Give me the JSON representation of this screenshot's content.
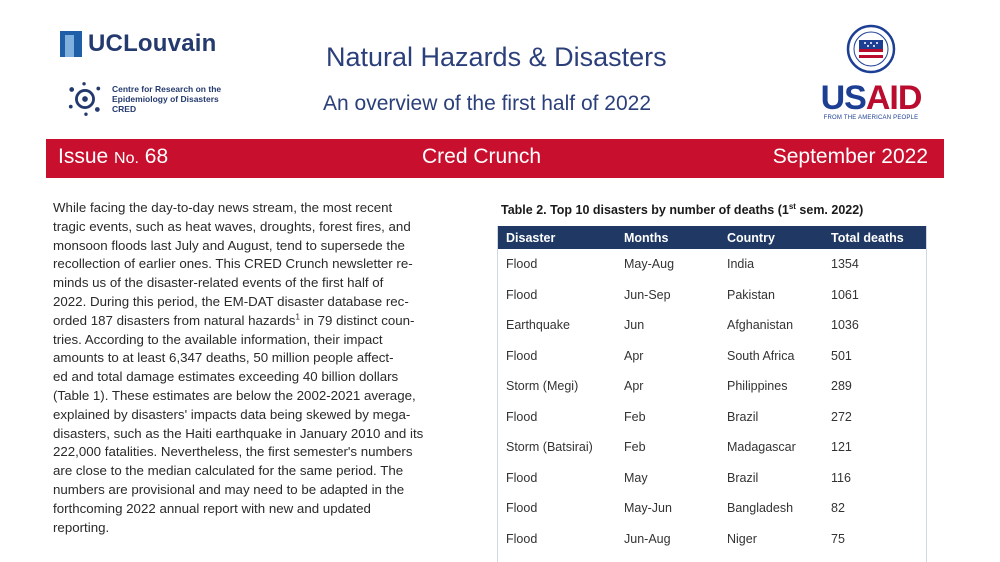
{
  "header": {
    "ucl_logo_text": "UCLouvain",
    "cred_logo_lines": [
      "Centre for Research on the",
      "Epidemiology of Disasters",
      "CRED"
    ],
    "title": "Natural Hazards & Disasters",
    "subtitle": "An overview of the first half of 2022",
    "usaid_logo_text": "USAID",
    "usaid_tagline": "FROM THE AMERICAN PEOPLE"
  },
  "banner": {
    "issue_label": "Issue",
    "issue_no": "No.",
    "issue_number": "68",
    "newsletter_name": "Cred Crunch",
    "date": "September 2022",
    "color": "#c8102e"
  },
  "body_lines": [
    "While facing the day-to-day news stream, the most recent",
    "tragic events, such as heat waves, droughts, forest fires, and",
    "monsoon floods last July and August, tend to supersede the",
    "recollection of earlier ones. This CRED Crunch newsletter re-",
    "minds us of the disaster-related events of the first half of",
    "2022. During this period, the EM-DAT disaster database rec-",
    "orded 187 disasters from natural hazards",
    "tries. According to the available information, their impact",
    "amounts to at least 6,347 deaths, 50 million people affect-",
    "ed  and total damage estimates exceeding 40 billion dollars",
    "(Table 1). These estimates are below the 2002-2021 average,",
    "explained by disasters' impacts data being skewed by mega-",
    "disasters, such as the Haiti earthquake in January 2010 and its",
    "222,000 fatalities. Nevertheless, the first semester's numbers",
    "are close to the median calculated for the same period. The",
    "numbers are provisional and may need to be adapted in the",
    "forthcoming 2022 annual report with new and updated",
    "reporting."
  ],
  "body_line7_sup": "1",
  "body_line7_tail": " in 79 distinct coun-",
  "table": {
    "caption_prefix": "Table 2. Top 10 disasters by number of deaths (1",
    "caption_sup": "st",
    "caption_suffix": " sem. 2022)",
    "header_color": "#1f3864",
    "columns": [
      "Disaster",
      "Months",
      "Country",
      "Total deaths"
    ],
    "rows": [
      [
        "Flood",
        "May-Aug",
        "India",
        "1354"
      ],
      [
        "Flood",
        "Jun-Sep",
        "Pakistan",
        "1061"
      ],
      [
        "Earthquake",
        "Jun",
        "Afghanistan",
        "1036"
      ],
      [
        "Flood",
        "Apr",
        "South Africa",
        "501"
      ],
      [
        "Storm (Megi)",
        "Apr",
        "Philippines",
        "289"
      ],
      [
        "Flood",
        "Feb",
        "Brazil",
        "272"
      ],
      [
        "Storm (Batsirai)",
        "Feb",
        "Madagascar",
        "121"
      ],
      [
        "Flood",
        "May",
        "Brazil",
        "116"
      ],
      [
        "Flood",
        "May-Jun",
        "Bangladesh",
        "82"
      ],
      [
        "Flood",
        "Jun-Aug",
        "Niger",
        "75"
      ]
    ]
  }
}
